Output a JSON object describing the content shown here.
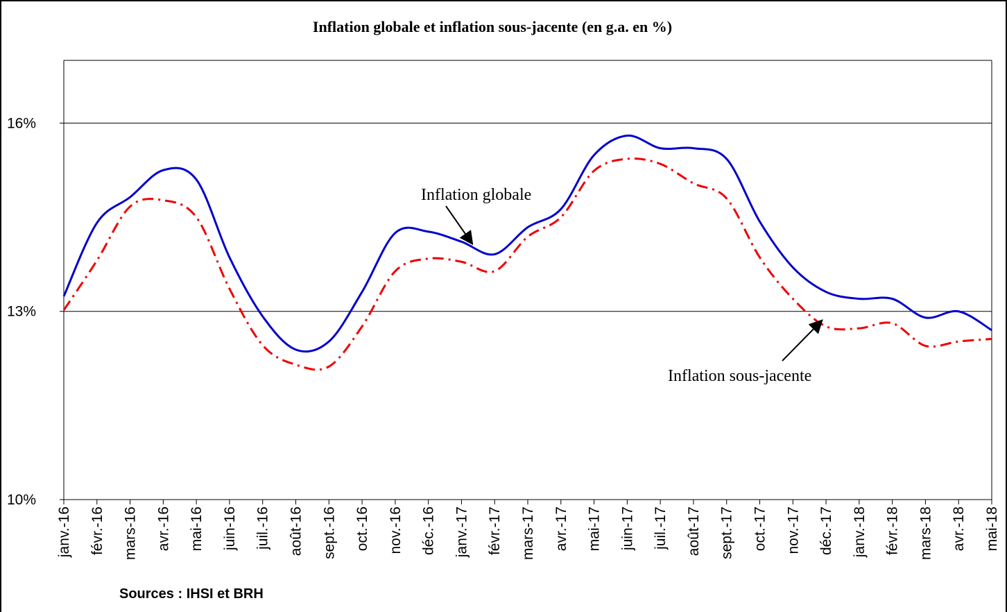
{
  "chart_data": {
    "type": "line",
    "title": "Inflation globale et inflation sous-jacente (en g.a. en %)",
    "categories": [
      "janv.-16",
      "févr.-16",
      "mars-16",
      "avr.-16",
      "mai-16",
      "juin-16",
      "juil.-16",
      "août-16",
      "sept.-16",
      "oct.-16",
      "nov.-16",
      "déc.-16",
      "janv.-17",
      "févr.-17",
      "mars-17",
      "avr.-17",
      "mai-17",
      "juin-17",
      "juil.-17",
      "août-17",
      "sept.-17",
      "oct.-17",
      "nov.-17",
      "déc.-17",
      "janv.-18",
      "févr.-18",
      "mars-18",
      "avr.-18",
      "mai-18"
    ],
    "series": [
      {
        "name": "Inflation globale",
        "color": "#0000cc",
        "style": "solid",
        "values": [
          13.24,
          14.41,
          14.82,
          15.25,
          15.1,
          13.86,
          12.92,
          12.39,
          12.52,
          13.31,
          14.25,
          14.27,
          14.11,
          13.91,
          14.34,
          14.63,
          15.49,
          15.8,
          15.6,
          15.6,
          15.43,
          14.43,
          13.7,
          13.31,
          13.2,
          13.2,
          12.9,
          13.0,
          12.7
        ]
      },
      {
        "name": "Inflation sous-jacente",
        "color": "#ee0000",
        "style": "dashdot",
        "values": [
          13.02,
          13.81,
          14.67,
          14.77,
          14.5,
          13.36,
          12.46,
          12.15,
          12.12,
          12.76,
          13.64,
          13.84,
          13.79,
          13.64,
          14.19,
          14.5,
          15.24,
          15.43,
          15.35,
          15.04,
          14.8,
          13.86,
          13.2,
          12.76,
          12.73,
          12.81,
          12.45,
          12.52,
          12.56
        ]
      }
    ],
    "ylim": [
      10,
      17
    ],
    "yticks": [
      {
        "value": 10,
        "label": "10%"
      },
      {
        "value": 13,
        "label": "13%"
      },
      {
        "value": 16,
        "label": "16%"
      }
    ],
    "grid": true,
    "source": "Sources : IHSI et BRH"
  }
}
